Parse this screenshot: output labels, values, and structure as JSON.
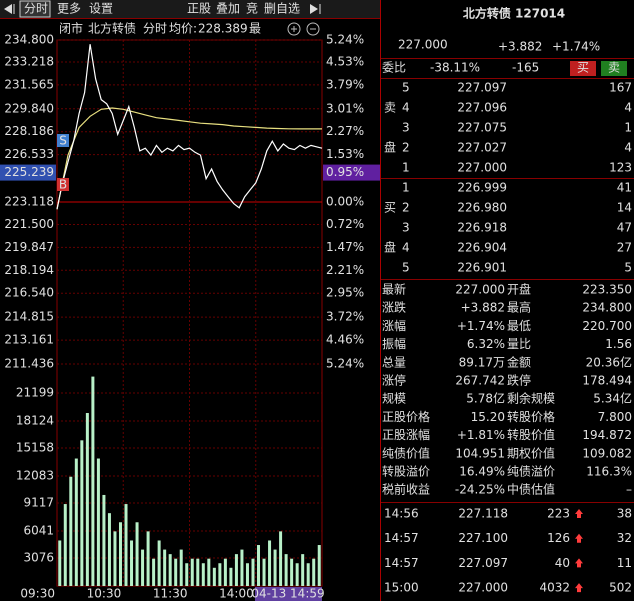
{
  "toolbar": {
    "left": [
      "分时",
      "更多",
      "设置"
    ],
    "right": [
      "正股",
      "叠加",
      "竞",
      "删自选"
    ]
  },
  "info_bar": {
    "status": "闭市",
    "name": "北方转债",
    "mode": "分时",
    "avg_label": "均价:",
    "avg_value": "228.389",
    "cut": "最"
  },
  "chart_data": {
    "type": "line",
    "ylim": [
      211.436,
      234.8
    ],
    "yticks": [
      {
        "value": 234.8,
        "label": "234.800"
      },
      {
        "value": 233.218,
        "label": "233.218"
      },
      {
        "value": 231.565,
        "label": "231.565"
      },
      {
        "value": 229.84,
        "label": "229.840"
      },
      {
        "value": 228.186,
        "label": "228.186"
      },
      {
        "value": 226.533,
        "label": "226.533"
      },
      {
        "value": 223.118,
        "label": "223.118"
      },
      {
        "value": 221.5,
        "label": "221.500"
      },
      {
        "value": 219.847,
        "label": "219.847"
      },
      {
        "value": 218.194,
        "label": "218.194"
      },
      {
        "value": 216.54,
        "label": "216.540"
      },
      {
        "value": 214.815,
        "label": "214.815"
      },
      {
        "value": 213.161,
        "label": "213.161"
      },
      {
        "value": 211.436,
        "label": "211.436"
      }
    ],
    "pct_ticks": [
      "5.24%",
      "4.53%",
      "3.79%",
      "3.01%",
      "2.27%",
      "1.53%",
      "0.00%",
      "0.72%",
      "1.47%",
      "2.21%",
      "2.95%",
      "3.72%",
      "4.46%",
      "5.24%"
    ],
    "current": {
      "value": 225.239,
      "label": "225.239",
      "pct": "0.95%"
    },
    "markers": [
      "S",
      "B"
    ],
    "xlim": [
      0,
      240
    ],
    "xticks": [
      {
        "value": 0,
        "label": "09:30"
      },
      {
        "value": 60,
        "label": "10:30"
      },
      {
        "value": 120,
        "label": "11:30"
      },
      {
        "value": 180,
        "label": "14:00"
      }
    ],
    "cursor_time": "04-13 14:59",
    "price_series": {
      "color": "#ffffff",
      "values": [
        222.6,
        224.5,
        226.0,
        227.5,
        229.5,
        231.0,
        234.5,
        232.0,
        230.5,
        230.2,
        229.5,
        228.0,
        229.0,
        230.0,
        228.5,
        226.8,
        227.0,
        226.5,
        227.2,
        226.7,
        227.0,
        226.8,
        227.2,
        226.9,
        227.0,
        226.7,
        226.5,
        224.8,
        225.5,
        224.6,
        224.0,
        223.5,
        223.0,
        222.7,
        223.5,
        224.0,
        224.5,
        225.5,
        226.8,
        227.5,
        226.8,
        227.3,
        227.0,
        226.9,
        227.2,
        227.0,
        227.2,
        227.1,
        227.0
      ]
    },
    "avg_series": {
      "color": "#e8e080",
      "values": [
        222.6,
        226.5,
        228.5,
        229.3,
        229.8,
        229.9,
        229.8,
        229.6,
        229.4,
        229.2,
        229.1,
        229.0,
        228.9,
        228.8,
        228.75,
        228.7,
        228.6,
        228.55,
        228.5,
        228.45,
        228.42,
        228.4,
        228.39,
        228.39,
        228.389
      ]
    },
    "volume": {
      "color": "#b8f0c8",
      "ylim": [
        0,
        24383
      ],
      "yticks": [
        21199,
        18124,
        15158,
        12083,
        9117,
        6041,
        3076
      ],
      "values": [
        5000,
        9000,
        12000,
        14000,
        16000,
        19000,
        23000,
        14000,
        10000,
        8000,
        6000,
        7000,
        9000,
        5000,
        7000,
        4000,
        6000,
        3000,
        5000,
        4000,
        3500,
        3000,
        4000,
        2500,
        3000,
        3000,
        2500,
        3000,
        2000,
        2500,
        3000,
        2000,
        3500,
        4000,
        2500,
        3000,
        4500,
        3000,
        5000,
        4000,
        6000,
        3500,
        3000,
        2500,
        3500,
        2500,
        3000,
        4500
      ]
    }
  },
  "quote": {
    "title": "北方转债 127014",
    "price": "227.000",
    "change": "+3.882",
    "pct": "+1.74%",
    "ratio_label": "委比",
    "ratio": "-38.11%",
    "diff": "-165",
    "buy": "买",
    "sell": "卖"
  },
  "order_book": {
    "sell_label": [
      "卖",
      "盘"
    ],
    "buy_label": [
      "买",
      "盘"
    ],
    "sells": [
      [
        "5",
        "227.097",
        "167"
      ],
      [
        "4",
        "227.096",
        "4"
      ],
      [
        "3",
        "227.075",
        "1"
      ],
      [
        "2",
        "227.027",
        "4"
      ],
      [
        "1",
        "227.000",
        "123"
      ]
    ],
    "buys": [
      [
        "1",
        "226.999",
        "41"
      ],
      [
        "2",
        "226.980",
        "14"
      ],
      [
        "3",
        "226.918",
        "47"
      ],
      [
        "4",
        "226.904",
        "27"
      ],
      [
        "5",
        "226.901",
        "5"
      ]
    ]
  },
  "stats": [
    [
      "最新",
      "227.000",
      "开盘",
      "223.350"
    ],
    [
      "涨跌",
      "+3.882",
      "最高",
      "234.800"
    ],
    [
      "涨幅",
      "+1.74%",
      "最低",
      "220.700"
    ],
    [
      "振幅",
      "6.32%",
      "量比",
      "1.56"
    ],
    [
      "总量",
      "89.17万",
      "金额",
      "20.36亿"
    ],
    [
      "涨停",
      "267.742",
      "跌停",
      "178.494"
    ],
    [
      "规模",
      "5.78亿",
      "剩余规模",
      "5.34亿"
    ],
    [
      "正股价格",
      "15.20",
      "转股价格",
      "7.800"
    ],
    [
      "正股涨幅",
      "+1.81%",
      "转股价值",
      "194.872"
    ],
    [
      "纯债价值",
      "104.951",
      "期权价值",
      "109.082"
    ],
    [
      "转股溢价",
      "16.49%",
      "纯债溢价",
      "116.3%"
    ],
    [
      "税前收益",
      "-24.25%",
      "中债估值",
      "–"
    ]
  ],
  "trades": [
    [
      "14:56",
      "227.118",
      "223",
      "38"
    ],
    [
      "14:57",
      "227.100",
      "126",
      "32"
    ],
    [
      "14:57",
      "227.097",
      "40",
      "11"
    ],
    [
      "15:00",
      "227.000",
      "4032",
      "502"
    ]
  ]
}
